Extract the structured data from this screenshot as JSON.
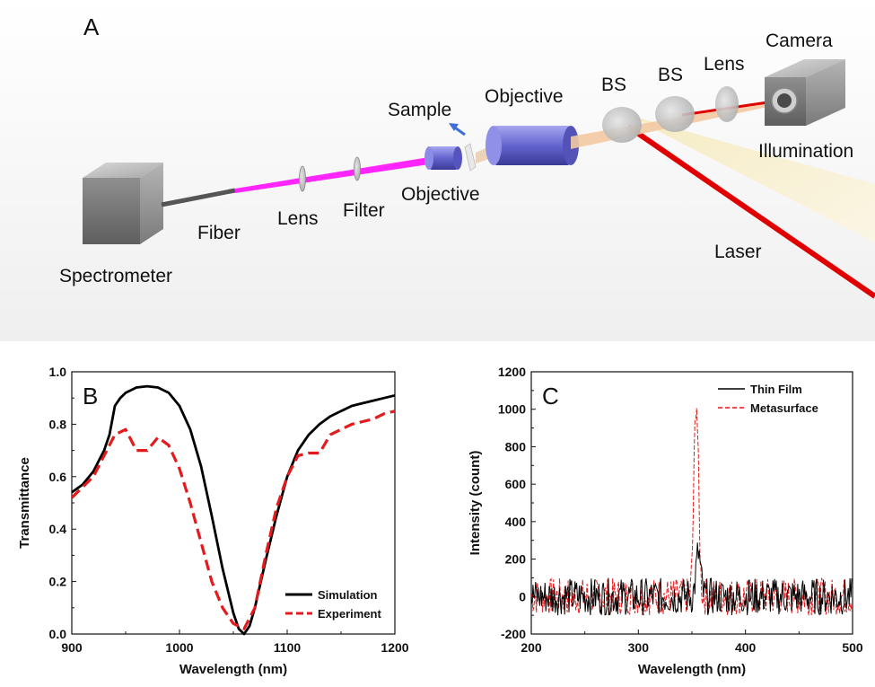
{
  "panel_a": {
    "letter": "A",
    "labels": {
      "spectrometer": "Spectrometer",
      "fiber": "Fiber",
      "lens1": "Lens",
      "filter": "Filter",
      "objective1": "Objective",
      "sample": "Sample",
      "objective2": "Objective",
      "bs1": "BS",
      "bs2": "BS",
      "lens2": "Lens",
      "camera": "Camera",
      "illumination": "Illumination",
      "laser": "Laser"
    },
    "colors": {
      "fiber_beam": "#ff00ff",
      "laser_beam": "#e00000",
      "illumination_beam": "#f7efc9",
      "objective": "#6a6ad8"
    }
  },
  "chart_data": [
    {
      "panel": "B",
      "type": "line",
      "xlabel": "Wavelength (nm)",
      "ylabel": "Transmittance",
      "xlim": [
        900,
        1200
      ],
      "ylim": [
        0.0,
        1.0
      ],
      "xticks": [
        "900",
        "1000",
        "1100",
        "1200"
      ],
      "yticks": [
        "0.0",
        "0.2",
        "0.4",
        "0.6",
        "0.8",
        "1.0"
      ],
      "legend_position": "bottom-right",
      "series": [
        {
          "name": "Simulation",
          "color": "#000000",
          "style": "solid",
          "x": [
            900,
            910,
            920,
            930,
            935,
            940,
            945,
            950,
            960,
            970,
            980,
            990,
            1000,
            1010,
            1020,
            1030,
            1040,
            1050,
            1055,
            1060,
            1065,
            1070,
            1080,
            1090,
            1100,
            1110,
            1120,
            1130,
            1140,
            1150,
            1160,
            1170,
            1180,
            1190,
            1200
          ],
          "y": [
            0.54,
            0.57,
            0.62,
            0.7,
            0.76,
            0.87,
            0.9,
            0.92,
            0.94,
            0.945,
            0.94,
            0.92,
            0.87,
            0.78,
            0.64,
            0.45,
            0.25,
            0.08,
            0.02,
            0.0,
            0.03,
            0.1,
            0.28,
            0.45,
            0.6,
            0.7,
            0.76,
            0.8,
            0.83,
            0.85,
            0.87,
            0.88,
            0.89,
            0.9,
            0.91
          ]
        },
        {
          "name": "Experiment",
          "color": "#e41a1c",
          "style": "dashed",
          "x": [
            900,
            910,
            920,
            930,
            940,
            950,
            960,
            970,
            980,
            990,
            1000,
            1010,
            1020,
            1030,
            1040,
            1050,
            1060,
            1070,
            1080,
            1090,
            1100,
            1110,
            1120,
            1130,
            1140,
            1150,
            1160,
            1170,
            1180,
            1190,
            1200
          ],
          "y": [
            0.52,
            0.56,
            0.6,
            0.68,
            0.76,
            0.78,
            0.7,
            0.7,
            0.75,
            0.72,
            0.63,
            0.5,
            0.35,
            0.2,
            0.1,
            0.04,
            0.02,
            0.1,
            0.3,
            0.48,
            0.6,
            0.68,
            0.69,
            0.69,
            0.76,
            0.78,
            0.8,
            0.81,
            0.82,
            0.84,
            0.85
          ]
        }
      ]
    },
    {
      "panel": "C",
      "type": "line",
      "xlabel": "Wavelength (nm)",
      "ylabel": "Intensity (count)",
      "xlim": [
        200,
        500
      ],
      "ylim": [
        -200,
        1200
      ],
      "xticks": [
        "200",
        "300",
        "400",
        "500"
      ],
      "yticks": [
        "-200",
        "0",
        "200",
        "400",
        "600",
        "800",
        "1000",
        "1200"
      ],
      "legend_position": "top-right",
      "noise_amplitude": 100,
      "series": [
        {
          "name": "Thin Film",
          "color": "#000000",
          "style": "solid",
          "peak_x": 356,
          "peak_y": 230,
          "peak_width": 3
        },
        {
          "name": "Metasurface",
          "color": "#e41a1c",
          "style": "dashed",
          "peak_x": 354,
          "peak_y": 1050,
          "peak_width": 3
        }
      ]
    }
  ]
}
